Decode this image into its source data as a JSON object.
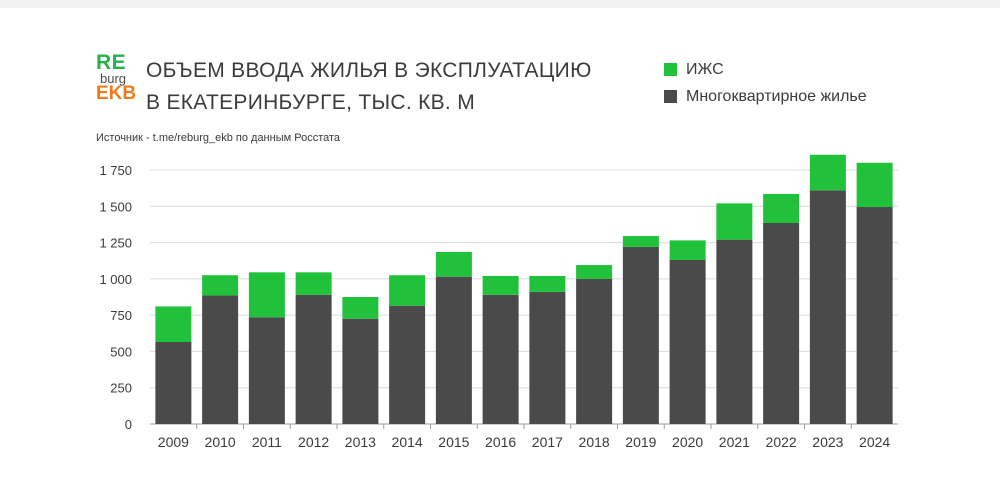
{
  "logo": {
    "line1": "RE",
    "line2": "burg",
    "line3": "EKB"
  },
  "title": {
    "line1": "ОБЪЕМ ВВОДА ЖИЛЬЯ В ЭКСПЛУАТАЦИЮ",
    "line2": "В ЕКАТЕРИНБУРГЕ, ТЫС. КВ. М"
  },
  "source": "Источник - t.me/reburg_ekb по данным Росстата",
  "colors": {
    "izhs": "#21c13b",
    "apartments": "#4a4a4a",
    "grid": "#dcdcdc"
  },
  "chart_data": {
    "type": "bar",
    "stacked": true,
    "categories": [
      "2009",
      "2010",
      "2011",
      "2012",
      "2013",
      "2014",
      "2015",
      "2016",
      "2017",
      "2018",
      "2019",
      "2020",
      "2021",
      "2022",
      "2023",
      "2024"
    ],
    "series": [
      {
        "name": "Многоквартирное жилье",
        "values": [
          565,
          885,
          735,
          890,
          725,
          815,
          1015,
          890,
          910,
          1000,
          1220,
          1130,
          1270,
          1385,
          1610,
          1495
        ]
      },
      {
        "name": "ИЖС",
        "values": [
          245,
          140,
          310,
          155,
          150,
          210,
          170,
          130,
          110,
          95,
          75,
          135,
          250,
          200,
          245,
          305
        ]
      }
    ],
    "yticks": [
      "0",
      "250",
      "500",
      "750",
      "1 000",
      "1 250",
      "1 500",
      "1 750"
    ],
    "ylim": [
      0,
      1750
    ],
    "grid": true,
    "legend_position": "top-right"
  }
}
